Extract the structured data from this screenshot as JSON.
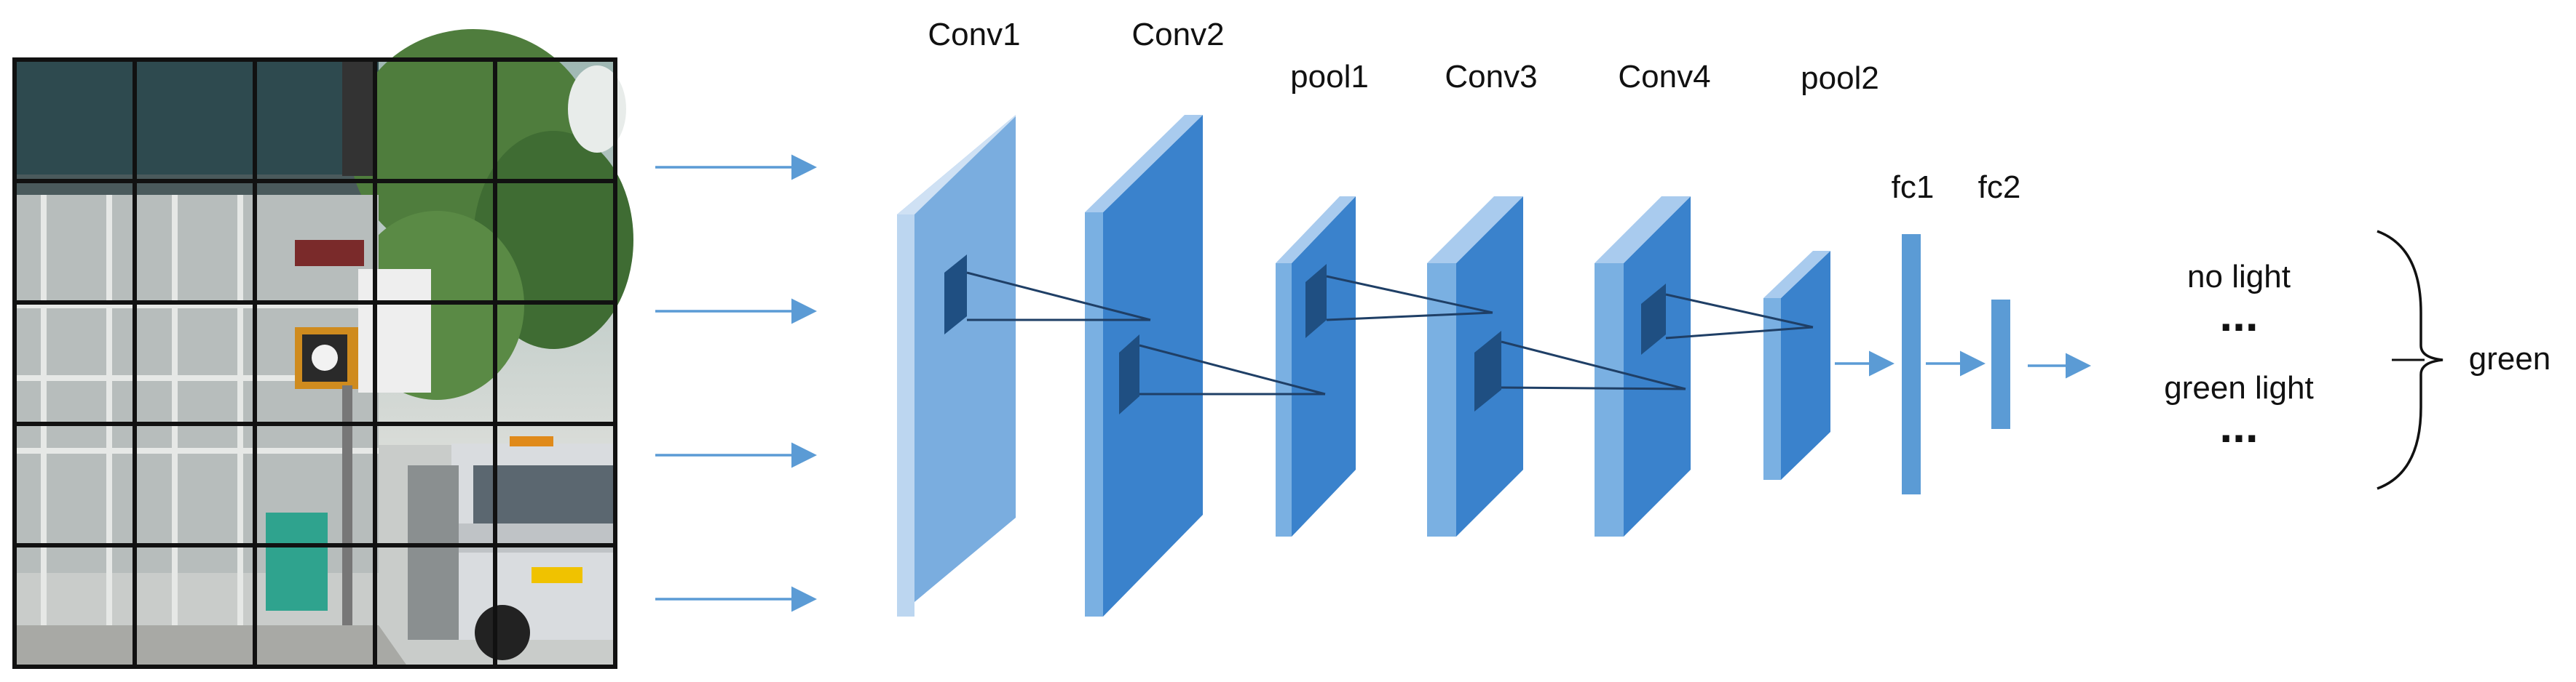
{
  "layers": {
    "conv1": "Conv1",
    "conv2": "Conv2",
    "pool1": "pool1",
    "conv3": "Conv3",
    "conv4": "Conv4",
    "pool2": "pool2",
    "fc1": "fc1",
    "fc2": "fc2"
  },
  "outputs": {
    "no_light": "no light",
    "ellipsis_top": "...",
    "green_light": "green light",
    "ellipsis_bottom": "...",
    "result": "green"
  },
  "colors": {
    "arrow": "#5b9bd5",
    "conv1_face": "#7aaddf",
    "conv1_side": "#bcd6f0",
    "conv_face": "#3a82cc",
    "conv_side": "#7ab0e2",
    "conv_top": "#a9cbee",
    "kernel": "#2c5f95",
    "line": "#1f3f66",
    "grid": "#111111"
  },
  "image": {
    "grid_rows": 5,
    "grid_cols": 5
  }
}
